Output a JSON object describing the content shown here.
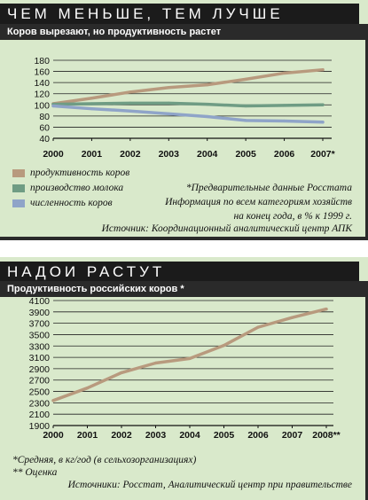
{
  "panel1": {
    "title": "ЧЕМ МЕНЬШЕ, ТЕМ ЛУЧШЕ",
    "subtitle": "Коров вырезают, но продуктивность растет",
    "footnote_star": "*Предварительные данные Росстата",
    "footnote_basis_1": "Информация по всем категориям хозяйств",
    "footnote_basis_2": "на конец года, в % к 1999 г.",
    "source": "Источник: Координационный аналитический центр АПК"
  },
  "panel2": {
    "title": "НАДОИ РАСТУТ",
    "subtitle": "Продуктивность российских коров *",
    "note_1": "*Средняя, в кг/год (в сельхозорганизациях)",
    "note_2": "** Оценка",
    "source": "Источники: Росстат, Аналитический центр при правительстве"
  },
  "colors": {
    "panel_bg": "#d9e9cb",
    "productivity": "#b89a7e",
    "milk": "#6f9c84",
    "cows": "#8fa4c8",
    "line2": "#b89a7e",
    "grid": "#222222"
  },
  "chart_data": [
    {
      "type": "line",
      "categories": [
        "2000",
        "2001",
        "2002",
        "2003",
        "2004",
        "2005",
        "2006",
        "2007*"
      ],
      "ylim": [
        40,
        180
      ],
      "yticks": [
        40,
        60,
        80,
        100,
        120,
        140,
        160,
        180
      ],
      "grid": true,
      "legend_position": "bottom-left",
      "series": [
        {
          "name": "продуктивность коров",
          "values": [
            102,
            112,
            123,
            131,
            136,
            146,
            157,
            163
          ]
        },
        {
          "name": "производство молока",
          "values": [
            101,
            102,
            103,
            103,
            101,
            98,
            99,
            100
          ]
        },
        {
          "name": "численность коров",
          "values": [
            98,
            93,
            89,
            84,
            79,
            72,
            71,
            69
          ]
        }
      ]
    },
    {
      "type": "line",
      "categories": [
        "2000",
        "2001",
        "2002",
        "2003",
        "2004",
        "2005",
        "2006",
        "2007",
        "2008**"
      ],
      "ylim": [
        1900,
        4100
      ],
      "yticks": [
        1900,
        2100,
        2300,
        2500,
        2700,
        2900,
        3100,
        3300,
        3500,
        3700,
        3900,
        4100
      ],
      "grid": true,
      "series": [
        {
          "values": [
            2340,
            2560,
            2830,
            3000,
            3080,
            3310,
            3630,
            3800,
            3950
          ]
        }
      ]
    }
  ]
}
